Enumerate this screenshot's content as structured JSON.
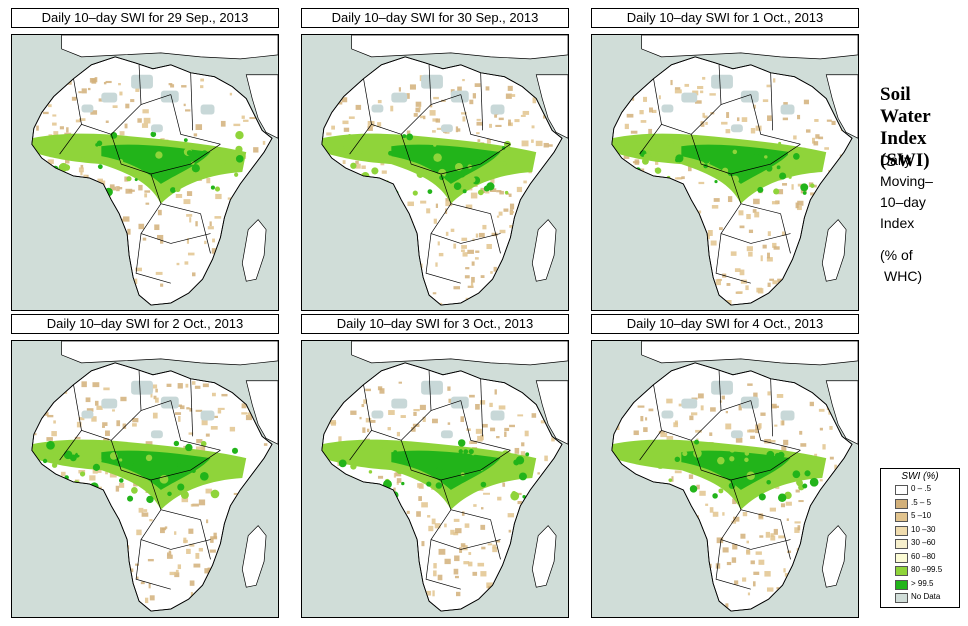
{
  "panels": [
    {
      "title": "Daily 10–day SWI for  29 Sep., 2013"
    },
    {
      "title": "Daily 10–day SWI for  30 Sep., 2013"
    },
    {
      "title": "Daily 10–day SWI for  1 Oct., 2013"
    },
    {
      "title": "Daily 10–day SWI for  2 Oct., 2013"
    },
    {
      "title": "Daily 10–day SWI for  3 Oct., 2013"
    },
    {
      "title": "Daily 10–day SWI for  4 Oct., 2013"
    }
  ],
  "side": {
    "title_lines": [
      "Soil",
      "Water",
      "Index",
      "(SWI)"
    ],
    "desc_lines": [
      "Daily",
      "Moving–",
      "10–day",
      "Index"
    ],
    "unit_lines": [
      "(% of",
      "WHC)"
    ]
  },
  "legend": {
    "title": "SWI (%)",
    "items": [
      {
        "label": "0 – .5",
        "color": "#ffffff"
      },
      {
        "label": ".5 – 5",
        "color": "#d2b07a"
      },
      {
        "label": "5 –10",
        "color": "#e2c48e"
      },
      {
        "label": "10 –30",
        "color": "#f0dcae"
      },
      {
        "label": "30 –60",
        "color": "#f6efcc"
      },
      {
        "label": "60 –80",
        "color": "#fbfbd4"
      },
      {
        "label": "80 –99.5",
        "color": "#8fd43a"
      },
      {
        "label": "> 99.5",
        "color": "#22b41a"
      },
      {
        "label": "No Data",
        "color": "#d0ddd8"
      }
    ]
  },
  "colors": {
    "ocean": "#d0ddd8",
    "land": "#ffffff",
    "dry": "#e2c48e",
    "wet": "#8fd43a",
    "saturated": "#22b41a",
    "nodata": "#c8d8d8"
  }
}
